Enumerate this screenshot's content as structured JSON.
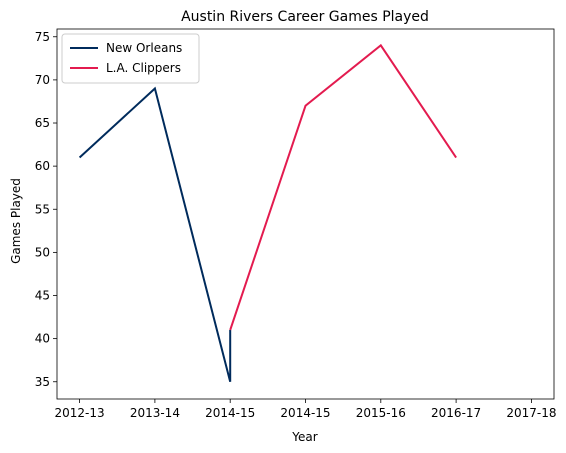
{
  "chart_data": {
    "type": "line",
    "title": "Austin Rivers Career Games Played",
    "xlabel": "Year",
    "ylabel": "Games Played",
    "x_tick_labels": [
      "2012-13",
      "2013-14",
      "2014-15",
      "2014-15",
      "2015-16",
      "2016-17",
      "2017-18"
    ],
    "xlim": [
      -0.3,
      6.3
    ],
    "ylim": [
      33,
      75.9
    ],
    "yticks": [
      35,
      40,
      45,
      50,
      55,
      60,
      65,
      70,
      75
    ],
    "grid": false,
    "legend": "top-left",
    "series": [
      {
        "name": "New Orleans",
        "color": "#002B5C",
        "points": [
          [
            0,
            61
          ],
          [
            1,
            69
          ],
          [
            2,
            35
          ],
          [
            2,
            41
          ]
        ]
      },
      {
        "name": "L.A. Clippers",
        "color": "#E31B4F",
        "points": [
          [
            2,
            41
          ],
          [
            3,
            67
          ],
          [
            4,
            74
          ],
          [
            5,
            61
          ]
        ]
      }
    ]
  }
}
